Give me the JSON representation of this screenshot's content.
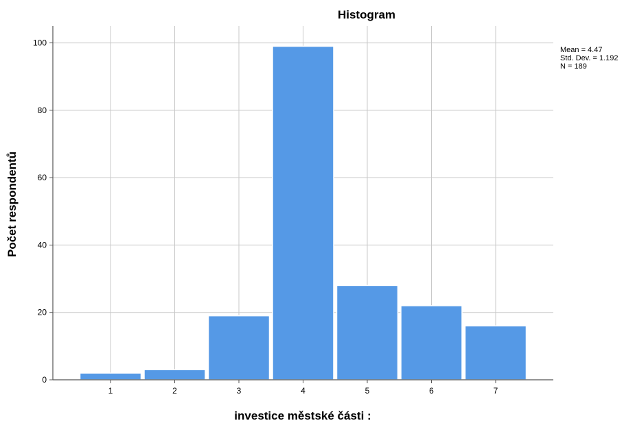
{
  "chart_data": {
    "type": "bar",
    "title": "Histogram",
    "xlabel": "investice městské části :",
    "ylabel": "Počet respondentů",
    "categories": [
      "1",
      "2",
      "3",
      "4",
      "5",
      "6",
      "7"
    ],
    "values": [
      2,
      3,
      19,
      99,
      28,
      22,
      16
    ],
    "ylim": [
      0,
      105
    ],
    "yticks": [
      0,
      20,
      40,
      60,
      80,
      100
    ],
    "grid": true,
    "bar_color": "#5599e6",
    "stats": {
      "mean": "Mean = 4.47",
      "std": "Std. Dev. = 1.192",
      "n": "N = 189"
    }
  }
}
